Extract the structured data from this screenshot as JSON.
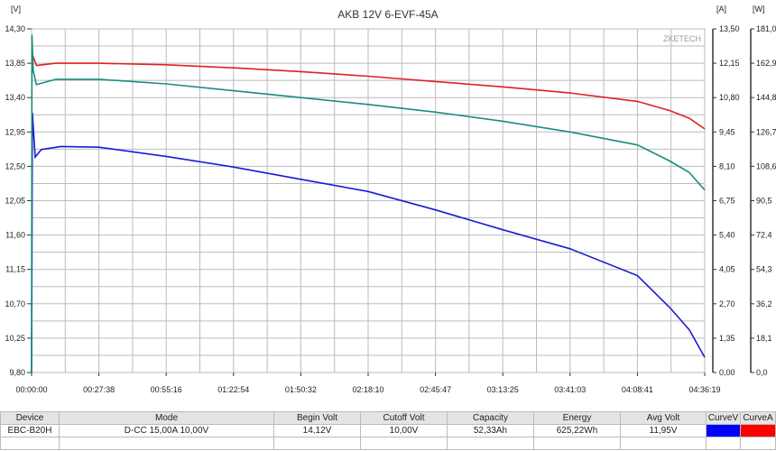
{
  "chart_data": {
    "type": "line",
    "title": "AKB 12V 6-EVF-45A",
    "watermark": "ZKETECH",
    "y_left": {
      "unit": "[V]",
      "range": [
        9.8,
        14.3
      ],
      "ticks": [
        "14,30",
        "13,85",
        "13,40",
        "12,95",
        "12,50",
        "12,05",
        "11,60",
        "11,15",
        "10,70",
        "10,25",
        "9,80"
      ]
    },
    "y_right_a": {
      "unit": "[A]",
      "range": [
        0,
        13.5
      ],
      "ticks": [
        "13,50",
        "12,15",
        "10,80",
        "9,45",
        "8,10",
        "6,75",
        "5,40",
        "4,05",
        "2,70",
        "1,35",
        "0,00"
      ]
    },
    "y_right_w": {
      "unit": "[W]",
      "range": [
        0,
        181.0
      ],
      "ticks": [
        "181,0",
        "162,9",
        "144,8",
        "126,7",
        "108,6",
        "90,5",
        "72,4",
        "54,3",
        "36,2",
        "18,1",
        "0,0"
      ]
    },
    "x_ticks": [
      "00:00:00",
      "00:27:38",
      "00:55:16",
      "01:22:54",
      "01:50:32",
      "02:18:10",
      "02:45:47",
      "03:13:25",
      "03:41:03",
      "04:08:41",
      "04:36:19"
    ],
    "x_range": [
      "00:00:00",
      "04:36:19"
    ],
    "grid": true,
    "series": [
      {
        "color": "#1a1ad8",
        "x": [
          "00:00:00",
          "00:00:20",
          "00:01:30",
          "00:04:00",
          "00:12:00",
          "00:27:38",
          "00:55:16",
          "01:22:54",
          "01:50:32",
          "02:18:10",
          "02:45:47",
          "03:13:25",
          "03:41:03",
          "04:08:41",
          "04:22:00",
          "04:30:00",
          "04:36:19"
        ],
        "y": [
          9.8,
          13.2,
          12.62,
          12.72,
          12.76,
          12.75,
          12.63,
          12.49,
          12.33,
          12.17,
          11.93,
          11.67,
          11.42,
          11.07,
          10.65,
          10.36,
          10.0
        ]
      },
      {
        "color": "#e02020",
        "x": [
          "00:00:00",
          "00:00:30",
          "00:02:00",
          "00:10:00",
          "00:27:38",
          "00:55:16",
          "01:22:54",
          "01:50:32",
          "02:18:10",
          "02:45:47",
          "03:13:25",
          "03:41:03",
          "04:08:41",
          "04:22:00",
          "04:30:00",
          "04:36:19"
        ],
        "y": [
          14.0,
          13.95,
          13.82,
          13.85,
          13.85,
          13.83,
          13.79,
          13.74,
          13.68,
          13.61,
          13.54,
          13.46,
          13.35,
          13.23,
          13.13,
          12.99
        ]
      },
      {
        "color": "#1a8c80",
        "x": [
          "00:00:00",
          "00:00:10",
          "00:00:40",
          "00:02:00",
          "00:10:00",
          "00:27:38",
          "00:55:16",
          "01:22:54",
          "01:50:32",
          "02:18:10",
          "02:45:47",
          "03:13:25",
          "03:41:03",
          "04:08:41",
          "04:22:00",
          "04:30:00",
          "04:36:19"
        ],
        "y": [
          9.8,
          14.22,
          13.75,
          13.57,
          13.64,
          13.64,
          13.58,
          13.49,
          13.4,
          13.31,
          13.21,
          13.09,
          12.95,
          12.78,
          12.57,
          12.42,
          12.19
        ]
      }
    ]
  },
  "table": {
    "headers": [
      "Device",
      "Mode",
      "Begin Volt",
      "Cutoff Volt",
      "Capacity",
      "Energy",
      "Avg Volt",
      "CurveV",
      "CurveA"
    ],
    "row": [
      "EBC-B20H",
      "D-CC 15,00A 10,00V",
      "14,12V",
      "10,00V",
      "52,33Ah",
      "625,22Wh",
      "11,95V"
    ],
    "curve_v_color": "#0000ff",
    "curve_a_color": "#ff0000"
  }
}
